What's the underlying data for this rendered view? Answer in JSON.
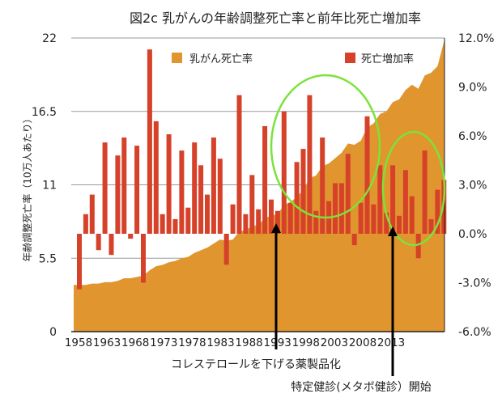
{
  "chart_data": {
    "type": "bar+area",
    "title": "図2c 乳がんの年齢調整死亡率と前年比死亡増加率",
    "ylabel": "年齢調整死亡率（10万人あたり）",
    "ylim": [
      0,
      22
    ],
    "y_ticks": [
      "0",
      "5.5",
      "11",
      "16.5",
      "22"
    ],
    "y2lim": [
      -6,
      12
    ],
    "y2_ticks": [
      "-6.0%",
      "-3.0%",
      "0.0%",
      "3.0%",
      "6.0%",
      "9.0%",
      "12.0%"
    ],
    "x_ticks": [
      "1958",
      "1963",
      "1968",
      "1973",
      "1978",
      "1983",
      "1988",
      "1993",
      "1998",
      "2003",
      "2008",
      "2013"
    ],
    "grid": true,
    "legend": [
      "乳がん死亡率",
      "死亡増加率"
    ],
    "legend_placement": "top",
    "colors": {
      "area": "#E0952F",
      "bars": "#D6412A",
      "ellipse": "#7BE33A",
      "arrow": "#000000"
    },
    "years": [
      1958,
      1959,
      1960,
      1961,
      1962,
      1963,
      1964,
      1965,
      1966,
      1967,
      1968,
      1969,
      1970,
      1971,
      1972,
      1973,
      1974,
      1975,
      1976,
      1977,
      1978,
      1979,
      1980,
      1981,
      1982,
      1983,
      1984,
      1985,
      1986,
      1987,
      1988,
      1989,
      1990,
      1991,
      1992,
      1993,
      1994,
      1995,
      1996,
      1997,
      1998,
      1999,
      2000,
      2001,
      2002,
      2003,
      2004,
      2005,
      2006,
      2007,
      2008,
      2009,
      2010,
      2011,
      2012,
      2013,
      2014,
      2015
    ],
    "series": [
      {
        "name": "乳がん死亡率",
        "axis": "left",
        "type": "area",
        "values": [
          3.5,
          3.5,
          3.6,
          3.6,
          3.7,
          3.7,
          3.8,
          4.0,
          4.0,
          4.1,
          4.2,
          4.6,
          4.9,
          5.0,
          5.2,
          5.3,
          5.5,
          5.6,
          5.9,
          6.1,
          6.3,
          6.6,
          6.9,
          6.8,
          6.9,
          7.5,
          7.6,
          7.9,
          8.0,
          8.5,
          8.7,
          8.8,
          9.5,
          9.7,
          10.1,
          10.6,
          11.5,
          11.7,
          12.4,
          12.6,
          13.0,
          13.4,
          14.1,
          14.0,
          14.3,
          15.3,
          15.6,
          16.3,
          16.5,
          17.2,
          17.4,
          18.1,
          18.5,
          18.2,
          19.2,
          19.4,
          19.9,
          21.9
        ]
      },
      {
        "name": "死亡増加率",
        "axis": "right",
        "type": "bar",
        "unit": "%",
        "values": [
          -3.4,
          1.2,
          2.4,
          -1.0,
          5.6,
          -1.3,
          4.8,
          5.9,
          -0.3,
          5.4,
          -3.0,
          11.3,
          6.9,
          1.2,
          6.1,
          0.9,
          5.1,
          1.6,
          5.6,
          4.2,
          2.4,
          5.9,
          4.6,
          -1.9,
          1.8,
          8.5,
          1.2,
          3.6,
          1.5,
          6.6,
          2.1,
          1.4,
          7.5,
          1.9,
          4.4,
          5.2,
          8.5,
          1.4,
          5.9,
          2.0,
          3.1,
          3.1,
          4.9,
          -0.7,
          1.9,
          7.2,
          1.8,
          4.2,
          1.3,
          4.2,
          1.1,
          3.9,
          2.3,
          -1.5,
          5.1,
          0.9,
          2.7,
          3.3
        ]
      }
    ],
    "annotations": [
      {
        "text": "コレステロールを下げる薬製品化",
        "year": 1988.5
      },
      {
        "text": "特定健診(メタボ健診）開始",
        "year": 2008
      }
    ]
  }
}
